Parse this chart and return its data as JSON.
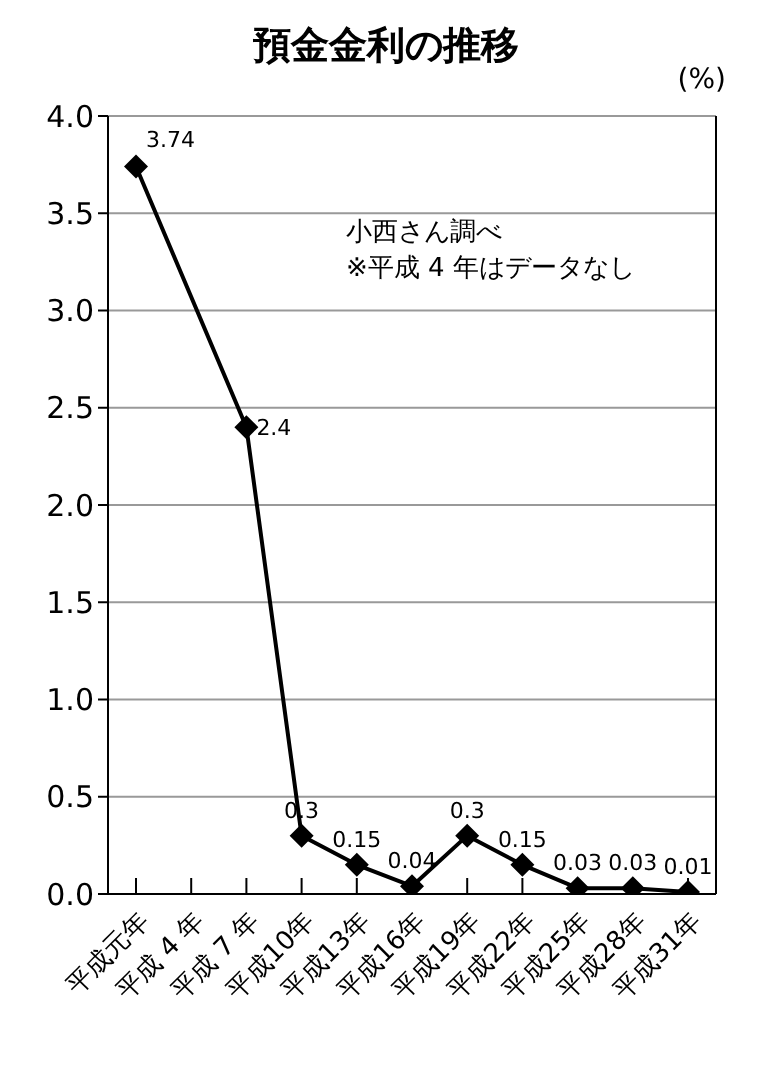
{
  "chart_data": {
    "type": "line",
    "title": "預金金利の推移",
    "ylabel": "(%)",
    "annotations": [
      "小西さん調べ",
      "※平成 4 年はデータなし"
    ],
    "categories": [
      "平成元年",
      "平成 4 年",
      "平成 7 年",
      "平成10年",
      "平成13年",
      "平成16年",
      "平成19年",
      "平成22年",
      "平成25年",
      "平成28年",
      "平成31年"
    ],
    "series": [
      {
        "color": "#000000",
        "values": [
          3.74,
          null,
          2.4,
          0.3,
          0.15,
          0.04,
          0.3,
          0.15,
          0.03,
          0.03,
          0.01
        ]
      }
    ],
    "ylim": [
      0,
      4
    ],
    "yticks": [
      {
        "value": 0,
        "label": "0.0"
      },
      0.5,
      {
        "value": 1,
        "label": "1.0"
      },
      1.5,
      {
        "value": 2,
        "label": "2.0"
      },
      2.5,
      {
        "value": 3,
        "label": "3.0"
      },
      3.5,
      {
        "value": 4,
        "label": "4.0"
      }
    ],
    "grid": "y",
    "marker": "diamond",
    "line_style": "solid",
    "data_labels": true,
    "legend": false
  }
}
